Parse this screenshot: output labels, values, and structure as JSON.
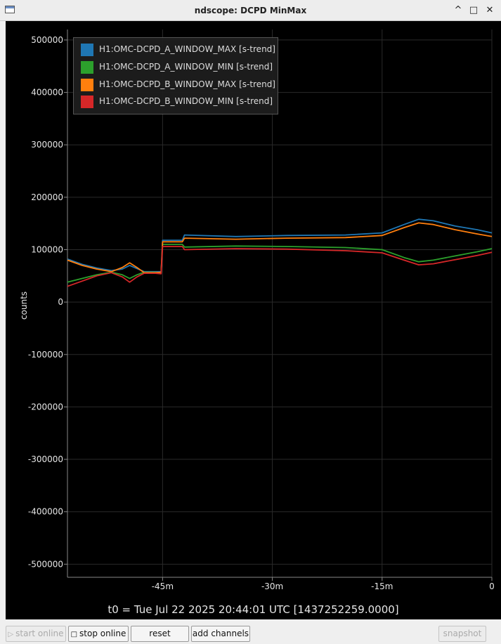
{
  "window": {
    "title": "ndscope: DCPD MinMax",
    "controls": {
      "minimize": "^",
      "maximize": "□",
      "close": "✕"
    },
    "icon": "app-window-icon"
  },
  "toolbar": {
    "start_online": "start online",
    "stop_online": "stop online",
    "reset": "reset",
    "add_channels": "add channels",
    "snapshot": "snapshot"
  },
  "colors": {
    "background": "#000000",
    "grid": "#2a2a2a",
    "axis_text": "#e6e6e6",
    "series": [
      "#1f77b4",
      "#2ca02c",
      "#ff7f0e",
      "#d62728"
    ]
  },
  "chart_data": {
    "type": "line",
    "ylabel": "counts",
    "xlabel": "t0 = Tue Jul 22 2025 20:44:01 UTC [1437252259.0000]",
    "xlim": [
      -58,
      0
    ],
    "ylim": [
      -525000,
      520000
    ],
    "xticks": [
      {
        "value": -45,
        "label": "-45m"
      },
      {
        "value": -30,
        "label": "-30m"
      },
      {
        "value": -15,
        "label": "-15m"
      },
      {
        "value": 0,
        "label": "0"
      }
    ],
    "yticks": [
      {
        "value": 500000,
        "label": "500000"
      },
      {
        "value": 400000,
        "label": "400000"
      },
      {
        "value": 300000,
        "label": "300000"
      },
      {
        "value": 200000,
        "label": "200000"
      },
      {
        "value": 100000,
        "label": "100000"
      },
      {
        "value": 0,
        "label": "0"
      },
      {
        "value": -100000,
        "label": "-100000"
      },
      {
        "value": -200000,
        "label": "-200000"
      },
      {
        "value": -300000,
        "label": "-300000"
      },
      {
        "value": -400000,
        "label": "-400000"
      },
      {
        "value": -500000,
        "label": "-500000"
      }
    ],
    "grid": true,
    "legend_position": "top-left",
    "series": [
      {
        "name": "H1:OMC-DCPD_A_WINDOW_MAX [s-trend]",
        "color": "#1f77b4",
        "points": [
          [
            -58,
            82000
          ],
          [
            -56,
            72000
          ],
          [
            -54,
            65000
          ],
          [
            -52,
            60000
          ],
          [
            -50.5,
            63000
          ],
          [
            -49.5,
            70000
          ],
          [
            -48.5,
            64000
          ],
          [
            -47.5,
            58000
          ],
          [
            -46,
            58000
          ],
          [
            -45.2,
            58000
          ],
          [
            -45,
            118000
          ],
          [
            -42.3,
            118000
          ],
          [
            -42,
            128000
          ],
          [
            -35,
            125000
          ],
          [
            -28,
            127000
          ],
          [
            -20,
            128000
          ],
          [
            -15,
            132000
          ],
          [
            -12,
            148000
          ],
          [
            -10,
            158000
          ],
          [
            -8,
            155000
          ],
          [
            -5,
            145000
          ],
          [
            -2,
            138000
          ],
          [
            0,
            132000
          ]
        ]
      },
      {
        "name": "H1:OMC-DCPD_A_WINDOW_MIN [s-trend]",
        "color": "#2ca02c",
        "points": [
          [
            -58,
            38000
          ],
          [
            -56,
            45000
          ],
          [
            -54,
            52000
          ],
          [
            -52,
            57000
          ],
          [
            -50.5,
            52000
          ],
          [
            -49.5,
            45000
          ],
          [
            -48.5,
            52000
          ],
          [
            -47.5,
            57000
          ],
          [
            -46,
            57000
          ],
          [
            -45.2,
            56000
          ],
          [
            -45,
            110000
          ],
          [
            -42.3,
            110000
          ],
          [
            -42,
            105000
          ],
          [
            -35,
            107000
          ],
          [
            -28,
            106000
          ],
          [
            -20,
            104000
          ],
          [
            -15,
            100000
          ],
          [
            -12,
            85000
          ],
          [
            -10,
            77000
          ],
          [
            -8,
            80000
          ],
          [
            -5,
            88000
          ],
          [
            -2,
            96000
          ],
          [
            0,
            102000
          ]
        ]
      },
      {
        "name": "H1:OMC-DCPD_B_WINDOW_MAX [s-trend]",
        "color": "#ff7f0e",
        "points": [
          [
            -58,
            80000
          ],
          [
            -56,
            70000
          ],
          [
            -54,
            63000
          ],
          [
            -52,
            58000
          ],
          [
            -50.5,
            66000
          ],
          [
            -49.5,
            75000
          ],
          [
            -48.5,
            66000
          ],
          [
            -47.5,
            56000
          ],
          [
            -46,
            56000
          ],
          [
            -45.2,
            57000
          ],
          [
            -45,
            115000
          ],
          [
            -42.3,
            115000
          ],
          [
            -42,
            122000
          ],
          [
            -35,
            120000
          ],
          [
            -28,
            122000
          ],
          [
            -20,
            123000
          ],
          [
            -15,
            127000
          ],
          [
            -12,
            142000
          ],
          [
            -10,
            151000
          ],
          [
            -8,
            148000
          ],
          [
            -5,
            138000
          ],
          [
            -2,
            130000
          ],
          [
            0,
            125000
          ]
        ]
      },
      {
        "name": "H1:OMC-DCPD_B_WINDOW_MIN [s-trend]",
        "color": "#d62728",
        "points": [
          [
            -58,
            30000
          ],
          [
            -56,
            40000
          ],
          [
            -54,
            50000
          ],
          [
            -52,
            56000
          ],
          [
            -50.5,
            48000
          ],
          [
            -49.5,
            38000
          ],
          [
            -48.5,
            48000
          ],
          [
            -47.5,
            55000
          ],
          [
            -46,
            55000
          ],
          [
            -45.2,
            54000
          ],
          [
            -45,
            106000
          ],
          [
            -42.3,
            106000
          ],
          [
            -42,
            100000
          ],
          [
            -35,
            102000
          ],
          [
            -28,
            101000
          ],
          [
            -20,
            98000
          ],
          [
            -15,
            94000
          ],
          [
            -12,
            80000
          ],
          [
            -10,
            71000
          ],
          [
            -8,
            73000
          ],
          [
            -5,
            81000
          ],
          [
            -2,
            89000
          ],
          [
            0,
            95000
          ]
        ]
      }
    ]
  }
}
